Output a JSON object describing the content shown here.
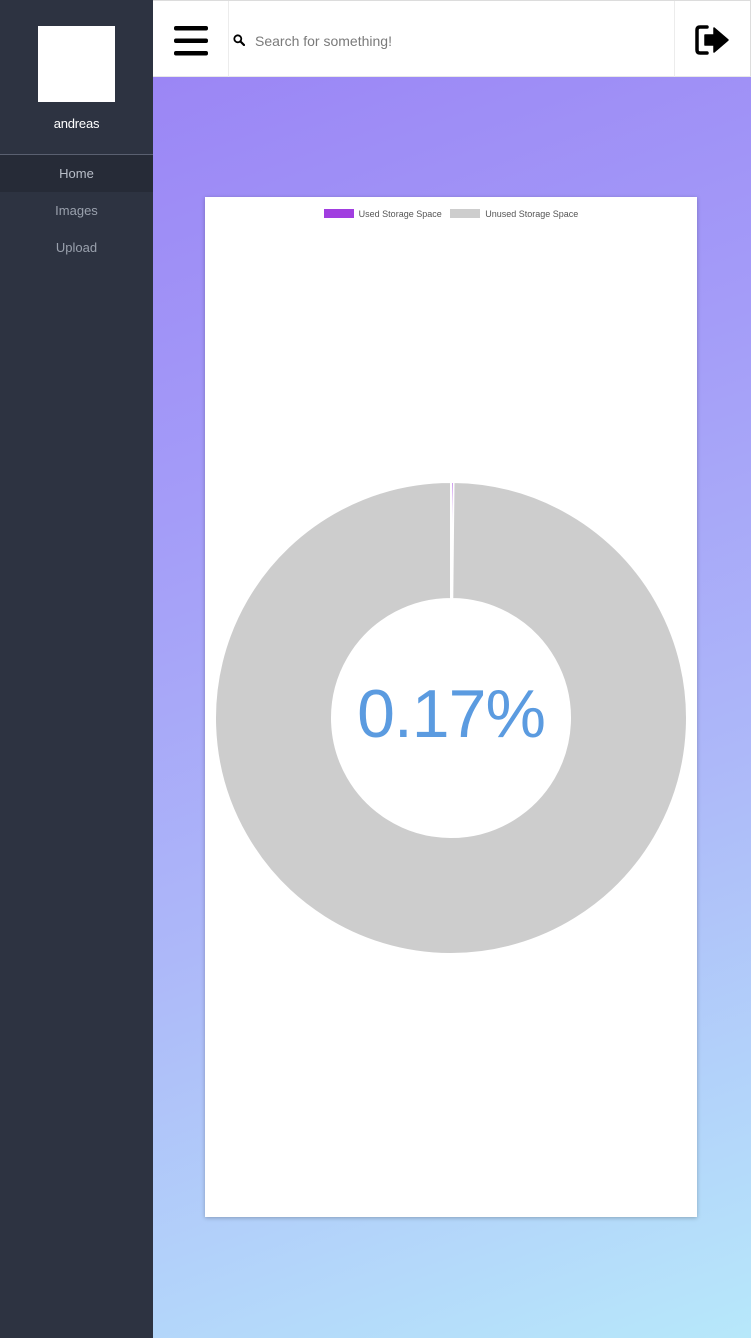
{
  "sidebar": {
    "username": "andreas",
    "items": [
      {
        "label": "Home"
      },
      {
        "label": "Images"
      },
      {
        "label": "Upload"
      }
    ]
  },
  "topbar": {
    "menu_icon": "hamburger-menu-icon",
    "search_icon": "search-icon",
    "search_placeholder": "Search for something!",
    "logout_icon": "sign-out-icon"
  },
  "chart_data": {
    "type": "doughnut",
    "center_label": "0.17%",
    "legend": [
      {
        "name": "Used Storage Space",
        "color": "#a13ee0"
      },
      {
        "name": "Unused Storage Space",
        "color": "#cdcdcd"
      }
    ],
    "values": [
      0.17,
      99.83
    ]
  }
}
